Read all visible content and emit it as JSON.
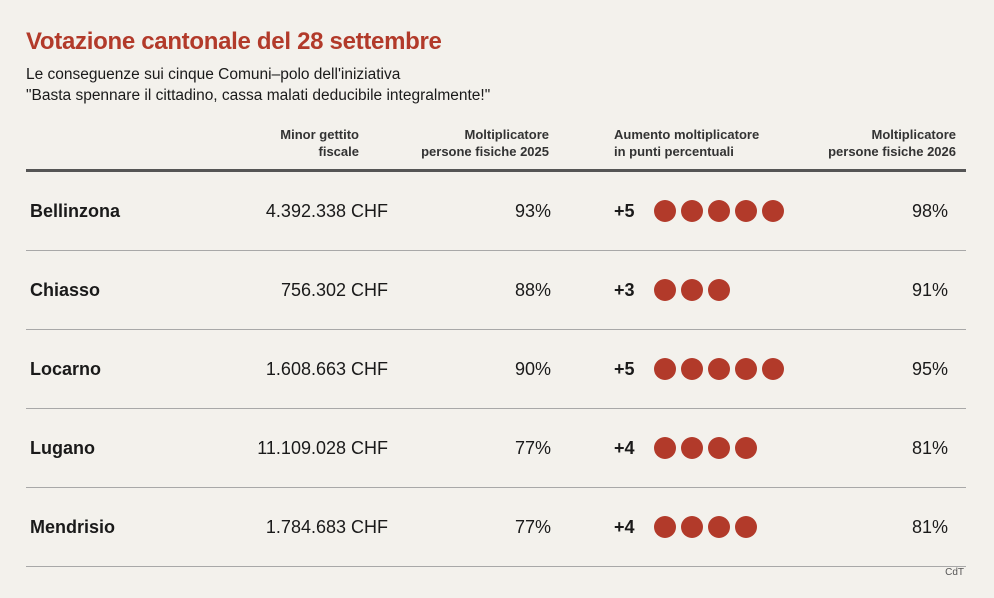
{
  "title": "Votazione cantonale del 28 settembre",
  "subtitle_line1": "Le conseguenze sui cinque Comuni–polo dell'iniziativa",
  "subtitle_line2": "\"Basta spennare il cittadino, cassa malati deducibile integralmente!\"",
  "headers": {
    "gettito_l1": "Minor gettito",
    "gettito_l2": "fiscale",
    "m2025_l1": "Moltiplicatore",
    "m2025_l2": "persone fisiche 2025",
    "aumento_l1": "Aumento moltiplicatore",
    "aumento_l2": "in punti percentuali",
    "m2026_l1": "Moltiplicatore",
    "m2026_l2": "persone fisiche 2026"
  },
  "rows": [
    {
      "comune": "Bellinzona",
      "gettito": "4.392.338 CHF",
      "m2025": "93%",
      "aumento": "+5",
      "m2026": "98%"
    },
    {
      "comune": "Chiasso",
      "gettito": "756.302 CHF",
      "m2025": "88%",
      "aumento": "+3",
      "m2026": "91%"
    },
    {
      "comune": "Locarno",
      "gettito": "1.608.663 CHF",
      "m2025": "90%",
      "aumento": "+5",
      "m2026": "95%"
    },
    {
      "comune": "Lugano",
      "gettito": "11.109.028 CHF",
      "m2025": "77%",
      "aumento": "+4",
      "m2026": "81%"
    },
    {
      "comune": "Mendrisio",
      "gettito": "1.784.683 CHF",
      "m2025": "77%",
      "aumento": "+4",
      "m2026": "81%"
    }
  ],
  "source": "CdT",
  "colors": {
    "accent": "#b23a2a",
    "background": "#f3f1ec"
  },
  "chart_data": {
    "type": "table",
    "title": "Votazione cantonale del 28 settembre",
    "columns": [
      "Minor gettito fiscale (CHF)",
      "Moltiplicatore persone fisiche 2025 (%)",
      "Aumento moltiplicatore in punti percentuali",
      "Moltiplicatore persone fisiche 2026 (%)"
    ],
    "categories": [
      "Bellinzona",
      "Chiasso",
      "Locarno",
      "Lugano",
      "Mendrisio"
    ],
    "series": [
      {
        "name": "Minor gettito fiscale",
        "values": [
          4392338,
          756302,
          1608663,
          11109028,
          1784683
        ]
      },
      {
        "name": "Moltiplicatore persone fisiche 2025",
        "values": [
          93,
          88,
          90,
          77,
          77
        ]
      },
      {
        "name": "Aumento moltiplicatore",
        "values": [
          5,
          3,
          5,
          4,
          4
        ]
      },
      {
        "name": "Moltiplicatore persone fisiche 2026",
        "values": [
          98,
          91,
          95,
          81,
          81
        ]
      }
    ]
  }
}
